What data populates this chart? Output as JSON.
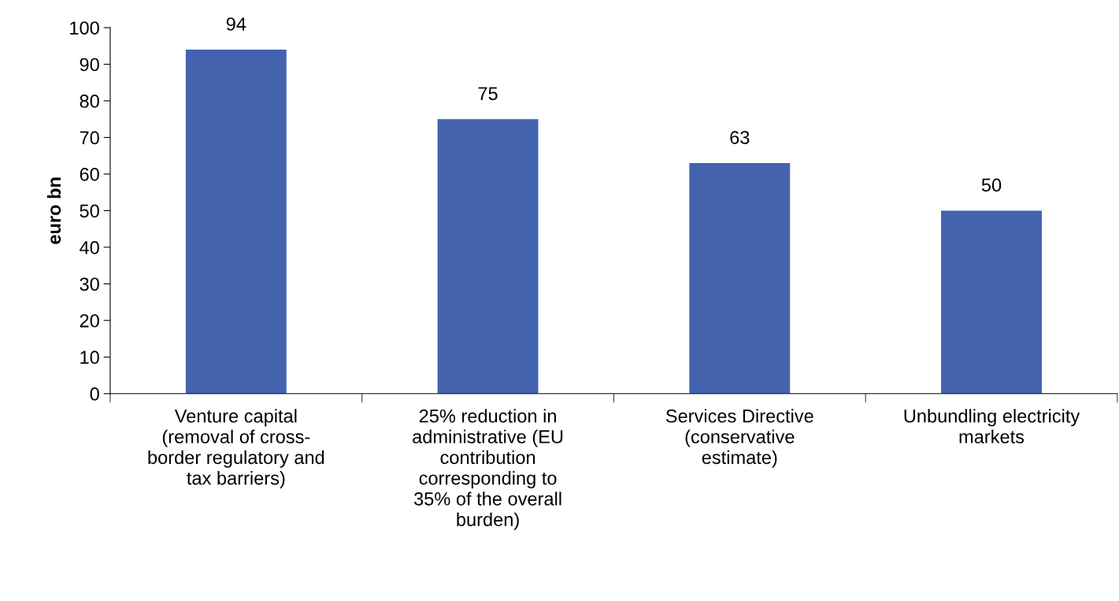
{
  "chart_data": {
    "type": "bar",
    "ylabel": "euro bn",
    "categories": [
      "Venture capital\n(removal of cross-\nborder regulatory and\ntax barriers)",
      "25% reduction in\nadministrative (EU\ncontribution\ncorresponding to\n35% of the overall\nburden)",
      "Services Directive\n(conservative\nestimate)",
      "Unbundling electricity\nmarkets"
    ],
    "values": [
      94,
      75,
      63,
      50
    ],
    "color": "#4363ae",
    "ylim": [
      0,
      100
    ],
    "yticks": [
      0,
      10,
      20,
      30,
      40,
      50,
      60,
      70,
      80,
      90,
      100
    ],
    "data_labels": true,
    "grid": false
  }
}
